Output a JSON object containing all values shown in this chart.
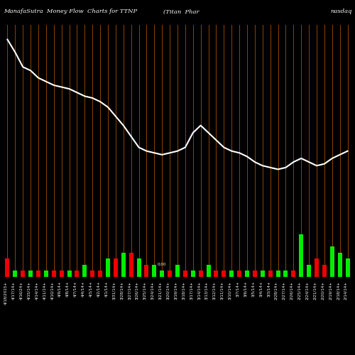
{
  "title_left": "ManafaSutra  Money Flow  Charts for TTNP",
  "title_center": "(Titan  Phar",
  "title_right": "nasdaq",
  "background_color": "#000000",
  "line_color": "#ffffff",
  "bar_positive_color": "#00ee00",
  "bar_negative_color": "#ee0000",
  "vline_color": "#8B4500",
  "n_points": 45,
  "line_values": [
    0.97,
    0.9,
    0.82,
    0.8,
    0.76,
    0.74,
    0.72,
    0.71,
    0.7,
    0.68,
    0.66,
    0.65,
    0.63,
    0.6,
    0.55,
    0.5,
    0.44,
    0.38,
    0.36,
    0.35,
    0.34,
    0.35,
    0.36,
    0.38,
    0.46,
    0.5,
    0.46,
    0.42,
    0.38,
    0.36,
    0.35,
    0.33,
    0.3,
    0.28,
    0.27,
    0.26,
    0.27,
    0.3,
    0.32,
    0.3,
    0.28,
    0.29,
    0.32,
    0.34,
    0.36
  ],
  "bar_values": [
    -3,
    1,
    -1,
    1,
    -1,
    1,
    -1,
    -1,
    1,
    -1,
    2,
    -1,
    -1,
    3,
    -3,
    4,
    -4,
    3,
    -2,
    2,
    1,
    -1,
    2,
    -1,
    1,
    -1,
    2,
    -1,
    -1,
    1,
    -1,
    1,
    -1,
    1,
    -1,
    1,
    1,
    -1,
    7,
    2,
    -3,
    -2,
    5,
    4,
    3
  ],
  "dates": [
    "4/18/2015+",
    "4/17/14+",
    "4/16/24+",
    "4/15/14+",
    "4/14/14+",
    "4/11/14+",
    "4/10/14+",
    "4/9/14+",
    "4/8/14+",
    "4/7/14+",
    "4/4/14+",
    "4/3/14+",
    "4/2/14+",
    "4/1/14+",
    "3/31/14+",
    "3/28/14+",
    "3/27/14+",
    "3/26/14+",
    "3/25/14+",
    "3/24/14+",
    "3/21/14+",
    "3/20/14+",
    "3/19/14+",
    "3/18/14+",
    "3/17/14+",
    "3/14/14+",
    "3/13/14+",
    "3/12/14+",
    "3/11/14+",
    "3/10/14+",
    "3/7/14+",
    "3/6/14+",
    "3/5/14+",
    "3/4/14+",
    "3/3/14+",
    "2/28/14+",
    "2/27/14+",
    "2/26/14+",
    "2/25/14+",
    "2/24/14+",
    "2/21/14+",
    "2/20/14+",
    "2/19/14+",
    "2/18/14+",
    "2/14/14+"
  ],
  "ylabel_text": "0.00",
  "title_fontsize": 6,
  "tick_fontsize": 4.0,
  "fig_width": 5.0,
  "fig_height": 5.0,
  "dpi": 100
}
